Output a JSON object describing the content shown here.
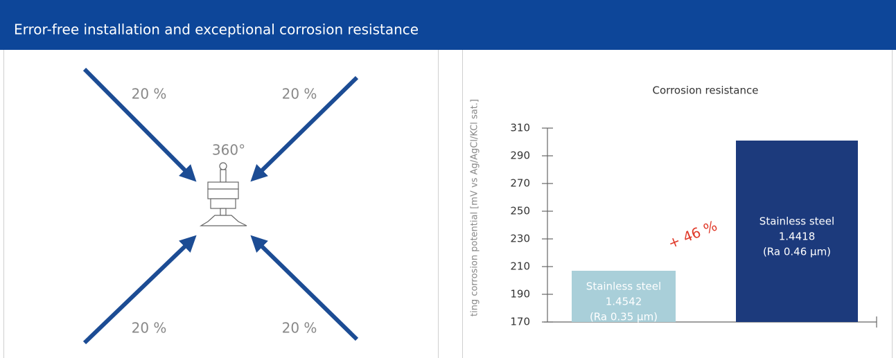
{
  "header": {
    "title": "Error-free installation and exceptional corrosion resistance"
  },
  "diagram": {
    "arrow_labels": [
      "20 %",
      "20 %",
      "20 %",
      "20 %"
    ],
    "center_label": "360°"
  },
  "chart_data": {
    "type": "bar",
    "title": "Corrosion resistance",
    "y_label": "ting corrosion potential [mV vs Ag/AgCl/KCl sat.]",
    "categories": [
      [
        "Stainless steel",
        "1.4542",
        "(Ra 0.35 µm)"
      ],
      [
        "Stainless steel",
        "1.4418",
        "(Ra 0.46 µm)"
      ]
    ],
    "values": [
      207,
      301
    ],
    "colors": [
      "#a9cfd9",
      "#1c3a7c"
    ],
    "ylim": [
      170,
      310
    ],
    "yticks": [
      170,
      190,
      210,
      230,
      250,
      270,
      290,
      310
    ],
    "annotation": "+ 46 %",
    "annotation_color": "#e03a2a"
  }
}
